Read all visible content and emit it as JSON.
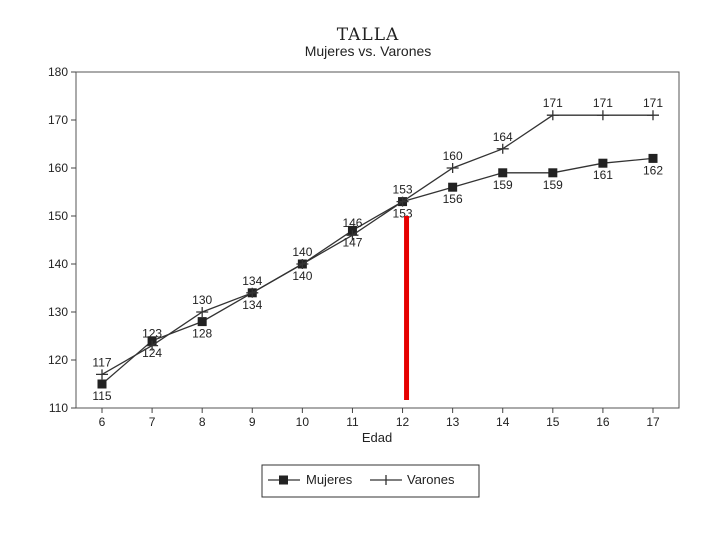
{
  "chart_data": {
    "type": "line",
    "title": "TALLA",
    "subtitle": "Mujeres vs. Varones",
    "xlabel": "Edad",
    "ylabel": "",
    "x": [
      6,
      7,
      8,
      9,
      10,
      11,
      12,
      13,
      14,
      15,
      16,
      17
    ],
    "xlim": [
      6,
      17
    ],
    "ylim": [
      110,
      180
    ],
    "yticks": [
      110,
      120,
      130,
      140,
      150,
      160,
      170,
      180
    ],
    "grid": false,
    "legend_position": "bottom-center",
    "series": [
      {
        "name": "Mujeres",
        "marker": "square",
        "values": [
          115,
          124,
          128,
          134,
          140,
          147,
          153,
          156,
          159,
          159,
          161,
          162
        ]
      },
      {
        "name": "Varones",
        "marker": "plus",
        "values": [
          117,
          123,
          130,
          134,
          140,
          146,
          153,
          160,
          164,
          171,
          171,
          171
        ]
      }
    ],
    "annotation": {
      "type": "vertical-marker",
      "x": 12,
      "y_from": 110,
      "y_to": 150,
      "color": "#e60000"
    }
  }
}
